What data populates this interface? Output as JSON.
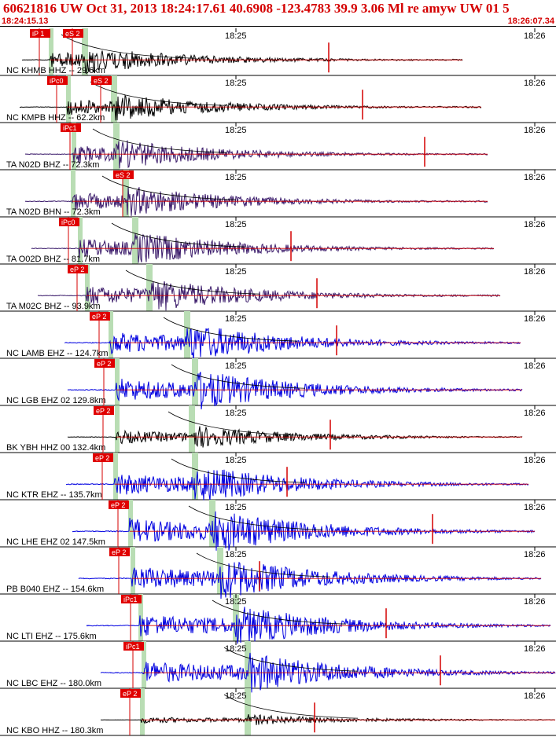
{
  "header": {
    "title": "60621816 UW Oct 31, 2013 18:24:17.61    40.6908 -123.4783 39.9 3.06 Ml re amyw UW 01    5",
    "start_time": "18:24:15.13",
    "end_time": "18:26:07.34"
  },
  "colors": {
    "header_text": "#d40000",
    "pick_box": "#e00000",
    "pick_line": "#d40000",
    "velocity_band": "#b9ddb4",
    "trace_black": "#000000",
    "trace_purple": "#3a1a6a",
    "trace_blue": "#0000e0",
    "model_curve": "#000000"
  },
  "chart_data": {
    "type": "line",
    "description_kind": "seismogram record section",
    "minute_labels": [
      "18:25",
      "18:26"
    ],
    "traces": [
      {
        "label": "NC KHMB HHZ -- 29.6km",
        "picks": [
          "iP 1",
          "eS 2"
        ],
        "color": "black"
      },
      {
        "label": "NC KMPB HHZ -- 62.2km",
        "picks": [
          "iPc0",
          "eS 2"
        ],
        "color": "black"
      },
      {
        "label": "TA N02D BHZ -- 72.3km",
        "picks": [
          "iPc1"
        ],
        "color": "purple"
      },
      {
        "label": "TA N02D BHN -- 72.3km",
        "picks": [
          "eS 2"
        ],
        "color": "purple"
      },
      {
        "label": "TA O02D BHZ -- 81.7km",
        "picks": [
          "iPc0"
        ],
        "color": "purple"
      },
      {
        "label": "TA M02C BHZ -- 93.9km",
        "picks": [
          "eP 2"
        ],
        "color": "purple"
      },
      {
        "label": "NC LAMB EHZ -- 124.7km",
        "picks": [
          "eP 2"
        ],
        "color": "blue"
      },
      {
        "label": "NC LGB EHZ 02 129.8km",
        "picks": [
          "eP 2"
        ],
        "color": "blue"
      },
      {
        "label": "BK YBH HHZ 00 132.4km",
        "picks": [
          "eP 2"
        ],
        "color": "black"
      },
      {
        "label": "NC KTR EHZ -- 135.7km",
        "picks": [
          "eP 2"
        ],
        "color": "blue"
      },
      {
        "label": "NC LHE EHZ 02 147.5km",
        "picks": [
          "eP 2"
        ],
        "color": "blue"
      },
      {
        "label": "PB B040 EHZ -- 154.6km",
        "picks": [
          "eP 2"
        ],
        "color": "blue"
      },
      {
        "label": "NC LTI EHZ -- 175.6km",
        "picks": [
          "iPc1"
        ],
        "color": "blue"
      },
      {
        "label": "NC LBC EHZ -- 180.0km",
        "picks": [
          "iPc1"
        ],
        "color": "blue"
      },
      {
        "label": "NC KBO HHZ -- 180.3km",
        "picks": [
          "eP 2"
        ],
        "color": "black"
      }
    ]
  }
}
